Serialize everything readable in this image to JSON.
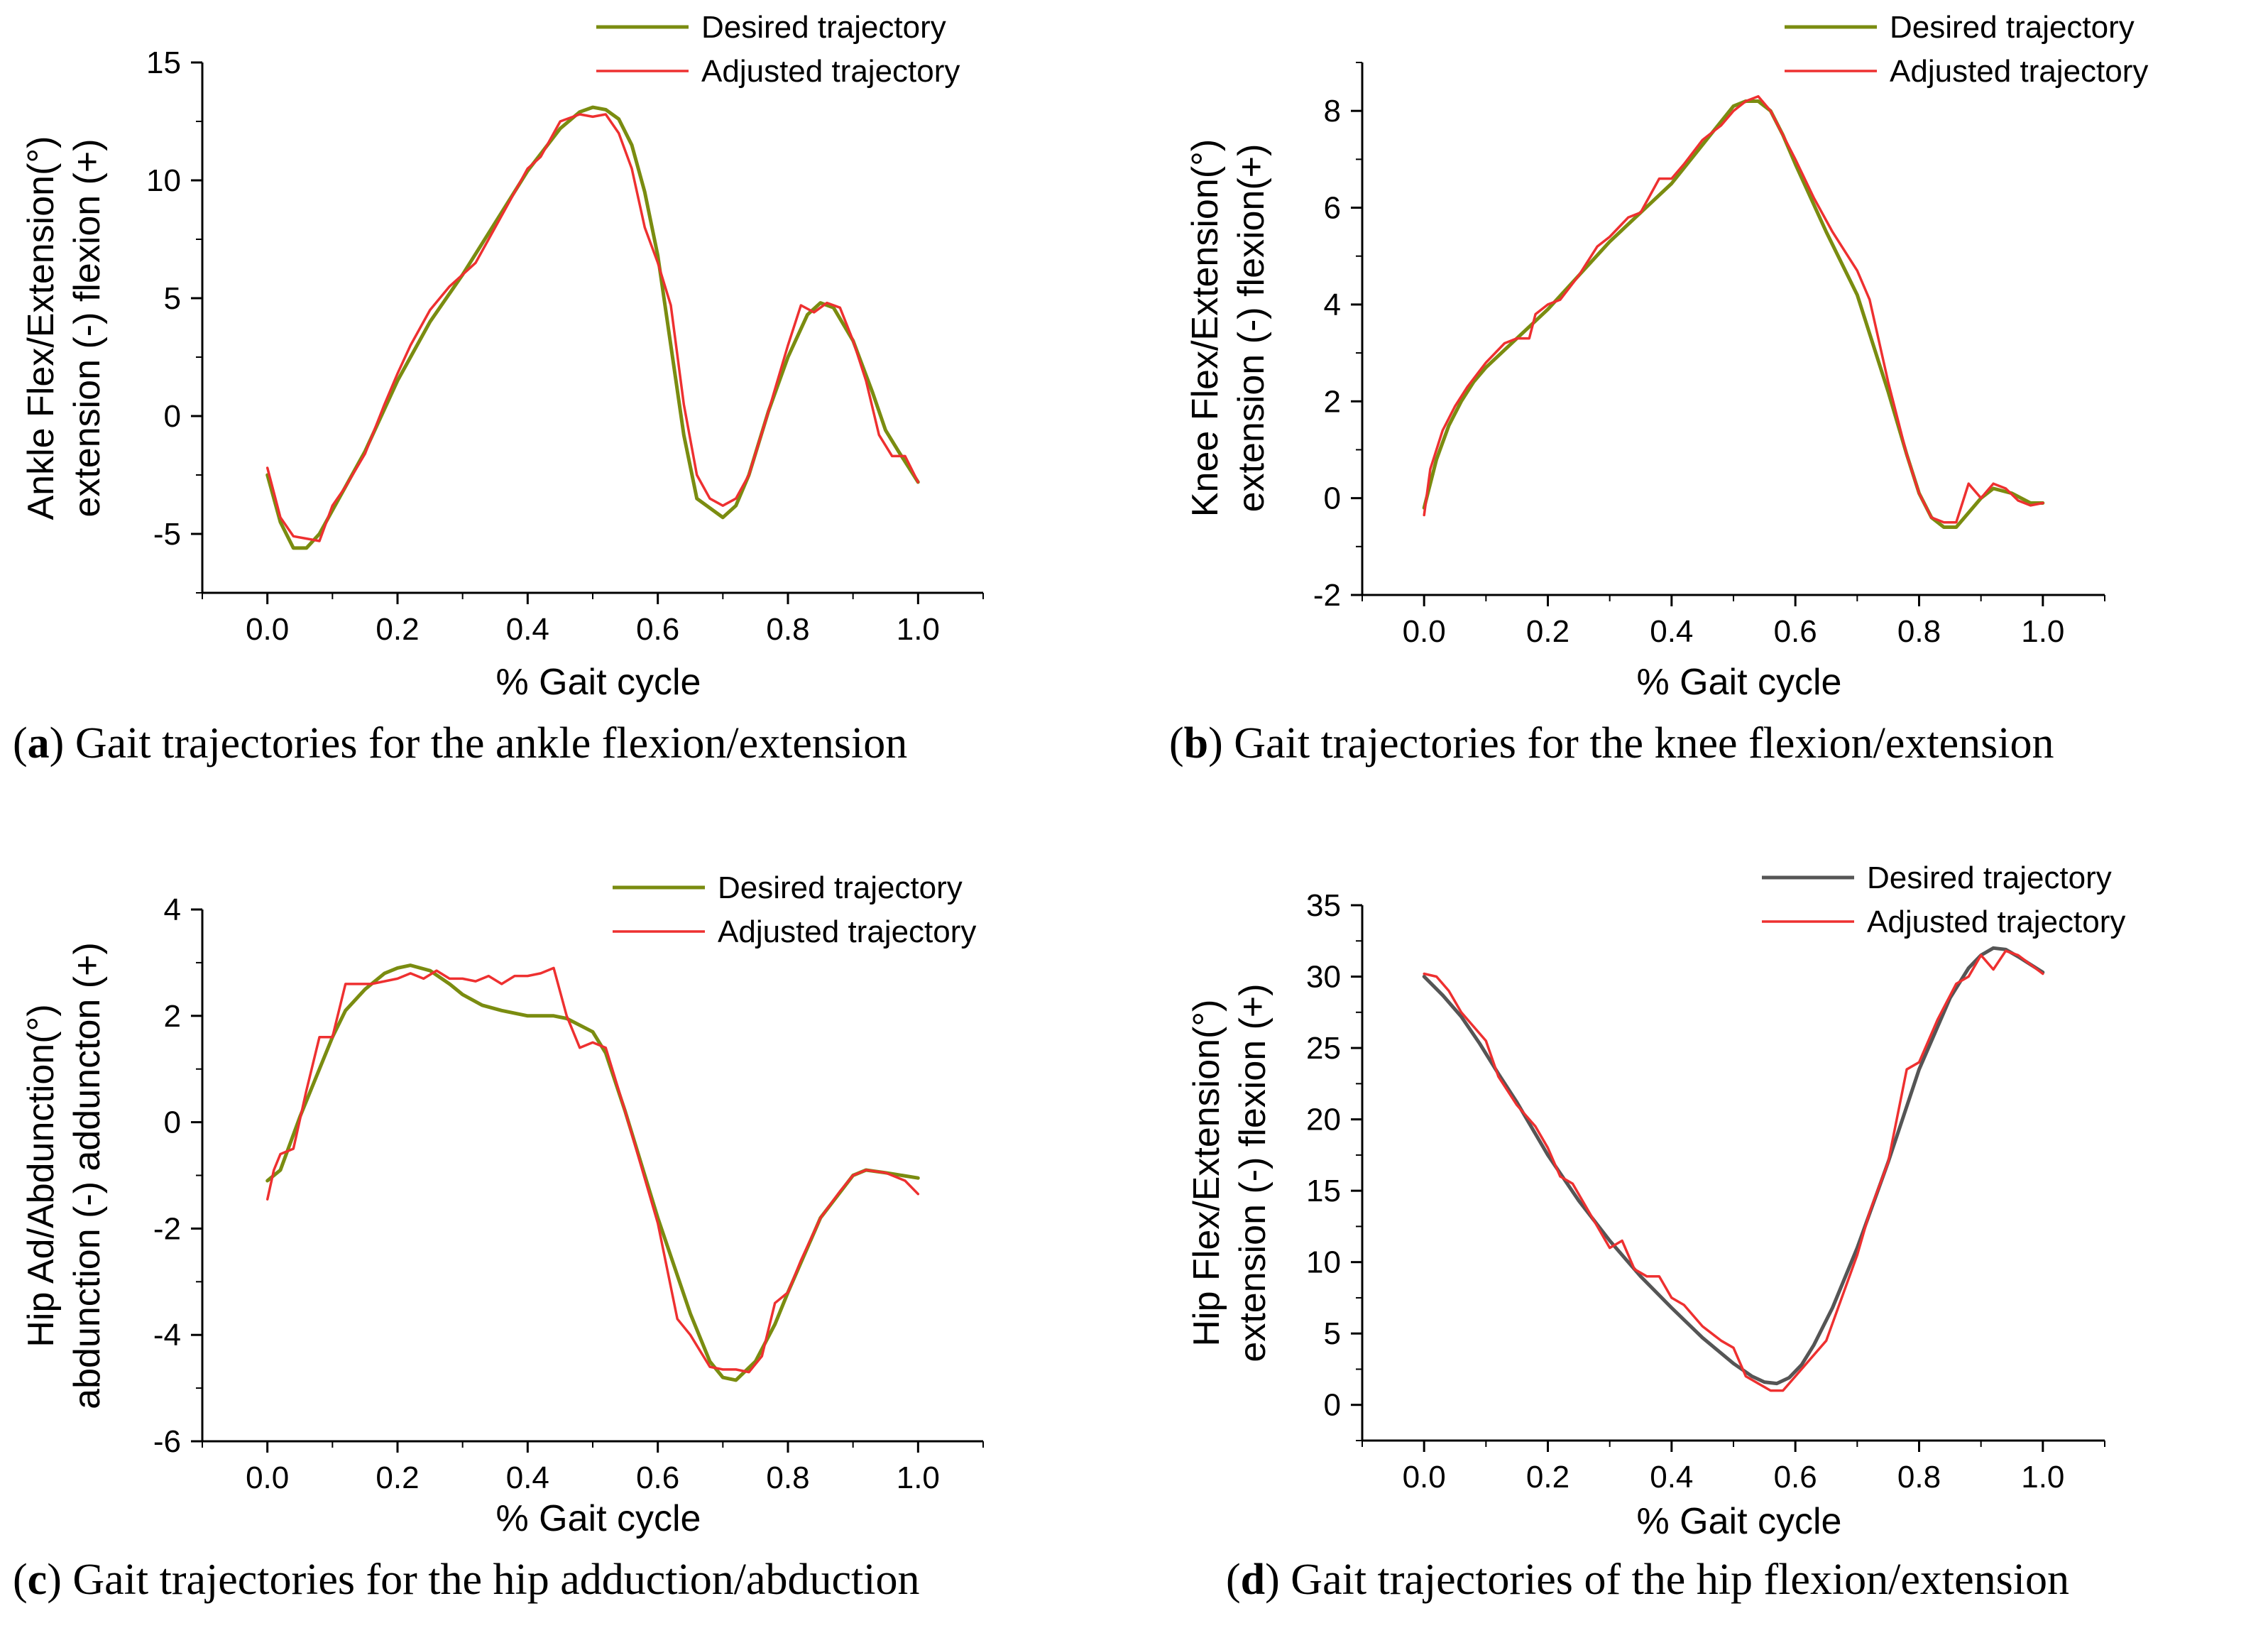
{
  "chart_data": [
    {
      "id": "a",
      "type": "line",
      "caption_letter": "a",
      "caption_text": "Gait trajectories for the ankle flexion/extension",
      "xlabel": "% Gait cycle",
      "ylabel_line1": "Ankle Flex/Extension(°)",
      "ylabel_line2": "extension (-)  flexion (+)",
      "xlim": [
        -0.1,
        1.1
      ],
      "ylim": [
        -7.5,
        15
      ],
      "xticks": [
        "0.0",
        "0.2",
        "0.4",
        "0.6",
        "0.8",
        "1.0"
      ],
      "yticks": [
        "-5",
        "0",
        "5",
        "10",
        "15"
      ],
      "legend": [
        "Desired trajectory",
        "Adjusted trajectory"
      ],
      "series": [
        {
          "name": "Desired trajectory",
          "color": "#7a8c10",
          "x": [
            0,
            0.02,
            0.04,
            0.06,
            0.08,
            0.1,
            0.15,
            0.2,
            0.25,
            0.3,
            0.35,
            0.4,
            0.45,
            0.48,
            0.5,
            0.52,
            0.54,
            0.56,
            0.58,
            0.6,
            0.62,
            0.64,
            0.66,
            0.68,
            0.7,
            0.72,
            0.74,
            0.77,
            0.8,
            0.83,
            0.85,
            0.87,
            0.9,
            0.93,
            0.95,
            0.97,
            1.0
          ],
          "y": [
            -2.5,
            -4.5,
            -5.6,
            -5.6,
            -5.0,
            -4.0,
            -1.5,
            1.5,
            4.0,
            6.0,
            8.2,
            10.4,
            12.2,
            12.9,
            13.1,
            13.0,
            12.6,
            11.5,
            9.5,
            6.8,
            3.0,
            -0.8,
            -3.5,
            -3.9,
            -4.3,
            -3.8,
            -2.5,
            0.2,
            2.5,
            4.3,
            4.8,
            4.6,
            3.2,
            1.0,
            -0.6,
            -1.5,
            -2.8
          ]
        },
        {
          "name": "Adjusted trajectory",
          "color": "#ee3030",
          "x": [
            0,
            0.02,
            0.04,
            0.06,
            0.08,
            0.1,
            0.12,
            0.15,
            0.18,
            0.2,
            0.22,
            0.25,
            0.28,
            0.3,
            0.32,
            0.35,
            0.38,
            0.4,
            0.42,
            0.45,
            0.48,
            0.5,
            0.52,
            0.54,
            0.56,
            0.58,
            0.6,
            0.62,
            0.64,
            0.66,
            0.68,
            0.7,
            0.72,
            0.74,
            0.77,
            0.8,
            0.82,
            0.84,
            0.86,
            0.88,
            0.9,
            0.92,
            0.94,
            0.96,
            0.98,
            1.0
          ],
          "y": [
            -2.2,
            -4.3,
            -5.1,
            -5.2,
            -5.3,
            -3.8,
            -3.0,
            -1.6,
            0.5,
            1.8,
            3.0,
            4.5,
            5.5,
            6.0,
            6.5,
            8.0,
            9.5,
            10.5,
            11.0,
            12.5,
            12.8,
            12.7,
            12.8,
            12.0,
            10.5,
            8.0,
            6.5,
            4.7,
            0.5,
            -2.5,
            -3.5,
            -3.8,
            -3.5,
            -2.5,
            0.2,
            3.0,
            4.7,
            4.4,
            4.8,
            4.6,
            3.2,
            1.5,
            -0.8,
            -1.7,
            -1.7,
            -2.8
          ]
        }
      ]
    },
    {
      "id": "b",
      "type": "line",
      "caption_letter": "b",
      "caption_text": "Gait trajectories for the knee flexion/extension",
      "xlabel": "% Gait cycle",
      "ylabel_line1": "Knee Flex/Extension(°)",
      "ylabel_line2": "extension (-)  flexion(+)",
      "xlim": [
        -0.1,
        1.1
      ],
      "ylim": [
        -2,
        9
      ],
      "xticks": [
        "0.0",
        "0.2",
        "0.4",
        "0.6",
        "0.8",
        "1.0"
      ],
      "yticks": [
        "-2",
        "0",
        "2",
        "4",
        "6",
        "8"
      ],
      "legend": [
        "Desired trajectory",
        "Adjusted trajectory"
      ],
      "series": [
        {
          "name": "Desired trajectory",
          "color": "#7a8c10",
          "x": [
            0,
            0.02,
            0.04,
            0.06,
            0.08,
            0.1,
            0.15,
            0.2,
            0.25,
            0.3,
            0.35,
            0.4,
            0.45,
            0.5,
            0.52,
            0.54,
            0.56,
            0.58,
            0.6,
            0.65,
            0.7,
            0.75,
            0.78,
            0.8,
            0.82,
            0.84,
            0.86,
            0.88,
            0.9,
            0.92,
            0.95,
            0.98,
            1.0
          ],
          "y": [
            -0.2,
            0.8,
            1.5,
            2.0,
            2.4,
            2.7,
            3.3,
            3.9,
            4.6,
            5.3,
            5.9,
            6.5,
            7.3,
            8.1,
            8.2,
            8.2,
            8.0,
            7.5,
            6.9,
            5.5,
            4.2,
            2.2,
            0.9,
            0.1,
            -0.4,
            -0.6,
            -0.6,
            -0.3,
            0.0,
            0.2,
            0.1,
            -0.1,
            -0.1
          ]
        },
        {
          "name": "Adjusted trajectory",
          "color": "#ee3030",
          "x": [
            0,
            0.01,
            0.03,
            0.05,
            0.07,
            0.1,
            0.13,
            0.15,
            0.17,
            0.18,
            0.2,
            0.22,
            0.25,
            0.28,
            0.3,
            0.33,
            0.35,
            0.38,
            0.4,
            0.42,
            0.45,
            0.48,
            0.5,
            0.52,
            0.54,
            0.56,
            0.58,
            0.6,
            0.63,
            0.66,
            0.7,
            0.72,
            0.75,
            0.78,
            0.8,
            0.82,
            0.84,
            0.86,
            0.88,
            0.9,
            0.92,
            0.94,
            0.96,
            0.98,
            1.0
          ],
          "y": [
            -0.35,
            0.6,
            1.4,
            1.9,
            2.3,
            2.8,
            3.2,
            3.3,
            3.3,
            3.8,
            4.0,
            4.1,
            4.6,
            5.2,
            5.4,
            5.8,
            5.9,
            6.6,
            6.6,
            6.9,
            7.4,
            7.7,
            8.0,
            8.2,
            8.3,
            8.0,
            7.5,
            7.0,
            6.2,
            5.5,
            4.7,
            4.1,
            2.4,
            0.9,
            0.1,
            -0.4,
            -0.5,
            -0.5,
            0.3,
            0.0,
            0.3,
            0.2,
            -0.05,
            -0.15,
            -0.1
          ]
        }
      ]
    },
    {
      "id": "c",
      "type": "line",
      "caption_letter": "c",
      "caption_text": "Gait trajectories for the hip adduction/abduction",
      "xlabel": "% Gait cycle",
      "ylabel_line1": "Hip Ad/Abdunction(°)",
      "ylabel_line2": "abdunction (-)  adduncton (+)",
      "xlim": [
        -0.1,
        1.1
      ],
      "ylim": [
        -6,
        4
      ],
      "xticks": [
        "0.0",
        "0.2",
        "0.4",
        "0.6",
        "0.8",
        "1.0"
      ],
      "yticks": [
        "-6",
        "-4",
        "-2",
        "0",
        "2",
        "4"
      ],
      "legend": [
        "Desired trajectory",
        "Adjusted trajectory"
      ],
      "series": [
        {
          "name": "Desired trajectory",
          "color": "#7a8c10",
          "x": [
            0,
            0.02,
            0.05,
            0.08,
            0.1,
            0.12,
            0.15,
            0.18,
            0.2,
            0.22,
            0.25,
            0.28,
            0.3,
            0.33,
            0.36,
            0.4,
            0.44,
            0.46,
            0.5,
            0.52,
            0.55,
            0.6,
            0.65,
            0.68,
            0.7,
            0.72,
            0.75,
            0.78,
            0.8,
            0.85,
            0.9,
            0.92,
            0.95,
            1.0
          ],
          "y": [
            -1.1,
            -0.9,
            0.1,
            1.0,
            1.6,
            2.1,
            2.5,
            2.8,
            2.9,
            2.95,
            2.85,
            2.6,
            2.4,
            2.2,
            2.1,
            2.0,
            2.0,
            1.95,
            1.7,
            1.3,
            0.2,
            -1.8,
            -3.6,
            -4.5,
            -4.8,
            -4.85,
            -4.5,
            -3.8,
            -3.2,
            -1.8,
            -1.0,
            -0.9,
            -0.95,
            -1.05
          ]
        },
        {
          "name": "Adjusted trajectory",
          "color": "#ee3030",
          "x": [
            0,
            0.01,
            0.02,
            0.04,
            0.06,
            0.08,
            0.1,
            0.12,
            0.14,
            0.16,
            0.18,
            0.2,
            0.22,
            0.24,
            0.26,
            0.28,
            0.3,
            0.32,
            0.34,
            0.36,
            0.38,
            0.4,
            0.42,
            0.44,
            0.46,
            0.48,
            0.5,
            0.52,
            0.55,
            0.6,
            0.63,
            0.65,
            0.68,
            0.7,
            0.72,
            0.74,
            0.76,
            0.78,
            0.8,
            0.82,
            0.85,
            0.88,
            0.9,
            0.92,
            0.95,
            0.98,
            1.0
          ],
          "y": [
            -1.45,
            -0.9,
            -0.6,
            -0.5,
            0.6,
            1.6,
            1.6,
            2.6,
            2.6,
            2.6,
            2.65,
            2.7,
            2.8,
            2.7,
            2.85,
            2.7,
            2.7,
            2.65,
            2.75,
            2.6,
            2.75,
            2.75,
            2.8,
            2.9,
            2.0,
            1.4,
            1.5,
            1.4,
            0.2,
            -1.9,
            -3.7,
            -4.0,
            -4.6,
            -4.65,
            -4.65,
            -4.7,
            -4.4,
            -3.4,
            -3.2,
            -2.6,
            -1.8,
            -1.3,
            -1.0,
            -0.9,
            -0.95,
            -1.1,
            -1.35
          ]
        }
      ]
    },
    {
      "id": "d",
      "type": "line",
      "caption_letter": "d",
      "caption_text": "Gait trajectories of the hip flexion/extension",
      "xlabel": "% Gait cycle",
      "ylabel_line1": "Hip Flex/Extension(°)",
      "ylabel_line2": "extension (-)  flexion (+)",
      "xlim": [
        -0.1,
        1.1
      ],
      "ylim": [
        -2.5,
        35
      ],
      "xticks": [
        "0.0",
        "0.2",
        "0.4",
        "0.6",
        "0.8",
        "1.0"
      ],
      "yticks": [
        "0",
        "5",
        "10",
        "15",
        "20",
        "25",
        "30",
        "35"
      ],
      "legend": [
        "Desired trajectory",
        "Adjusted trajectory"
      ],
      "series": [
        {
          "name": "Desired trajectory",
          "color": "#555555",
          "x": [
            0,
            0.03,
            0.06,
            0.09,
            0.12,
            0.15,
            0.2,
            0.25,
            0.3,
            0.35,
            0.4,
            0.45,
            0.5,
            0.53,
            0.55,
            0.57,
            0.59,
            0.61,
            0.63,
            0.66,
            0.7,
            0.75,
            0.8,
            0.85,
            0.88,
            0.9,
            0.92,
            0.94,
            0.96,
            1.0
          ],
          "y": [
            30,
            28.7,
            27.2,
            25.3,
            23.2,
            21.2,
            17.5,
            14.3,
            11.5,
            9.0,
            6.8,
            4.7,
            2.9,
            2.0,
            1.6,
            1.5,
            1.9,
            2.8,
            4.2,
            6.8,
            11.0,
            17.0,
            23.5,
            28.5,
            30.6,
            31.5,
            32.0,
            31.9,
            31.4,
            30.3
          ]
        },
        {
          "name": "Adjusted trajectory",
          "color": "#ee3030",
          "x": [
            0,
            0.02,
            0.04,
            0.06,
            0.08,
            0.1,
            0.12,
            0.15,
            0.18,
            0.2,
            0.22,
            0.24,
            0.26,
            0.28,
            0.3,
            0.32,
            0.34,
            0.36,
            0.38,
            0.4,
            0.42,
            0.45,
            0.48,
            0.5,
            0.52,
            0.54,
            0.56,
            0.58,
            0.6,
            0.62,
            0.65,
            0.7,
            0.72,
            0.75,
            0.78,
            0.8,
            0.83,
            0.86,
            0.88,
            0.9,
            0.92,
            0.94,
            0.96,
            1.0
          ],
          "y": [
            30.2,
            30.0,
            29.0,
            27.5,
            26.5,
            25.5,
            23.0,
            21.0,
            19.5,
            18.0,
            16.0,
            15.5,
            14.0,
            12.5,
            11.0,
            11.5,
            9.5,
            9.0,
            9.0,
            7.5,
            7.0,
            5.5,
            4.5,
            4.0,
            2.0,
            1.5,
            1.0,
            1.0,
            2.0,
            3.0,
            4.5,
            10.5,
            13.5,
            17.0,
            23.5,
            24.0,
            27.0,
            29.5,
            30.0,
            31.5,
            30.5,
            31.8,
            31.5,
            30.2
          ]
        }
      ]
    }
  ]
}
